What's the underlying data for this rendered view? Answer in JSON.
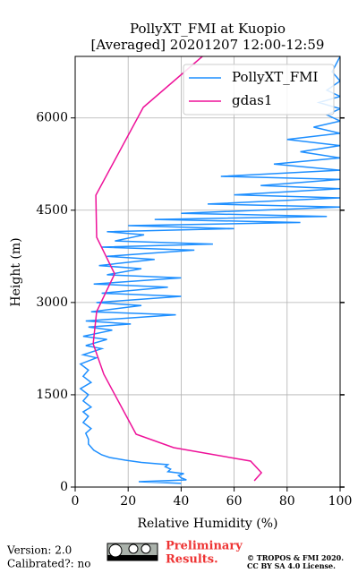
{
  "chart_data": {
    "type": "line",
    "title": "PollyXT_FMI at Kuopio",
    "subtitle": "[Averaged] 20201207 12:00-12:59",
    "x_label": "Relative Humidity (%)",
    "y_label": "Height (m)",
    "xlim": [
      0,
      100
    ],
    "xticks": [
      0,
      20,
      40,
      60,
      80,
      100
    ],
    "ylim": [
      0,
      7000
    ],
    "yticks": [
      0,
      1500,
      3000,
      4500,
      6000
    ],
    "grid": true,
    "legend": "upper right",
    "series": [
      {
        "name": "PollyXT_FMI",
        "color": "#1e8fff",
        "x": [
          40,
          24,
          42,
          40,
          39,
          41,
          35,
          36,
          34,
          35,
          25,
          19,
          13,
          10,
          7,
          5,
          5,
          4,
          6,
          3,
          5,
          3,
          6,
          3,
          5,
          2,
          6,
          3,
          5,
          2,
          8,
          3,
          10,
          4,
          12,
          3,
          14,
          5,
          21,
          4,
          38,
          6,
          25,
          8,
          40,
          10,
          35,
          7,
          40,
          12,
          25,
          9,
          30,
          12,
          45,
          10,
          52,
          15,
          26,
          12,
          60,
          20,
          85,
          30,
          95,
          40,
          100,
          50,
          100,
          60,
          100,
          70,
          100,
          55,
          100,
          75,
          100,
          85,
          100,
          80,
          100,
          90,
          100,
          95,
          100,
          92,
          100,
          95,
          100,
          97,
          100
        ],
        "y": [
          60,
          87,
          116,
          150,
          189,
          218,
          250,
          291,
          330,
          364,
          400,
          437,
          480,
          524,
          600,
          699,
          780,
          873,
          950,
          1050,
          1150,
          1223,
          1300,
          1400,
          1500,
          1600,
          1700,
          1800,
          1900,
          2000,
          2100,
          2150,
          2250,
          2300,
          2400,
          2450,
          2550,
          2600,
          2650,
          2700,
          2800,
          2850,
          2950,
          3000,
          3100,
          3150,
          3250,
          3300,
          3400,
          3450,
          3550,
          3600,
          3700,
          3750,
          3850,
          3900,
          3950,
          4000,
          4100,
          4150,
          4200,
          4250,
          4300,
          4350,
          4400,
          4450,
          4550,
          4600,
          4700,
          4750,
          4850,
          4900,
          5000,
          5050,
          5150,
          5250,
          5350,
          5450,
          5550,
          5650,
          5750,
          5850,
          5950,
          6050,
          6150,
          6250,
          6350,
          6450,
          6600,
          6750,
          7000
        ]
      },
      {
        "name": "gdas1",
        "color": "#ee1199",
        "x": [
          67.6,
          70.3,
          66.2,
          37.2,
          23,
          10.8,
          6.8,
          8.1,
          14.9,
          8.1,
          7.8,
          25.7,
          48
        ],
        "y": [
          102,
          233,
          422,
          640,
          859,
          1834,
          2329,
          2853,
          3465,
          4061,
          4745,
          6172,
          7000
        ]
      }
    ],
    "footer": {
      "version": "Version: 2.0",
      "calibrated": "Calibrated?: no",
      "preliminary": [
        "Preliminary",
        "Results."
      ],
      "copyright": [
        "© TROPOS & FMI 2020.",
        "CC BY SA 4.0 License."
      ]
    }
  }
}
